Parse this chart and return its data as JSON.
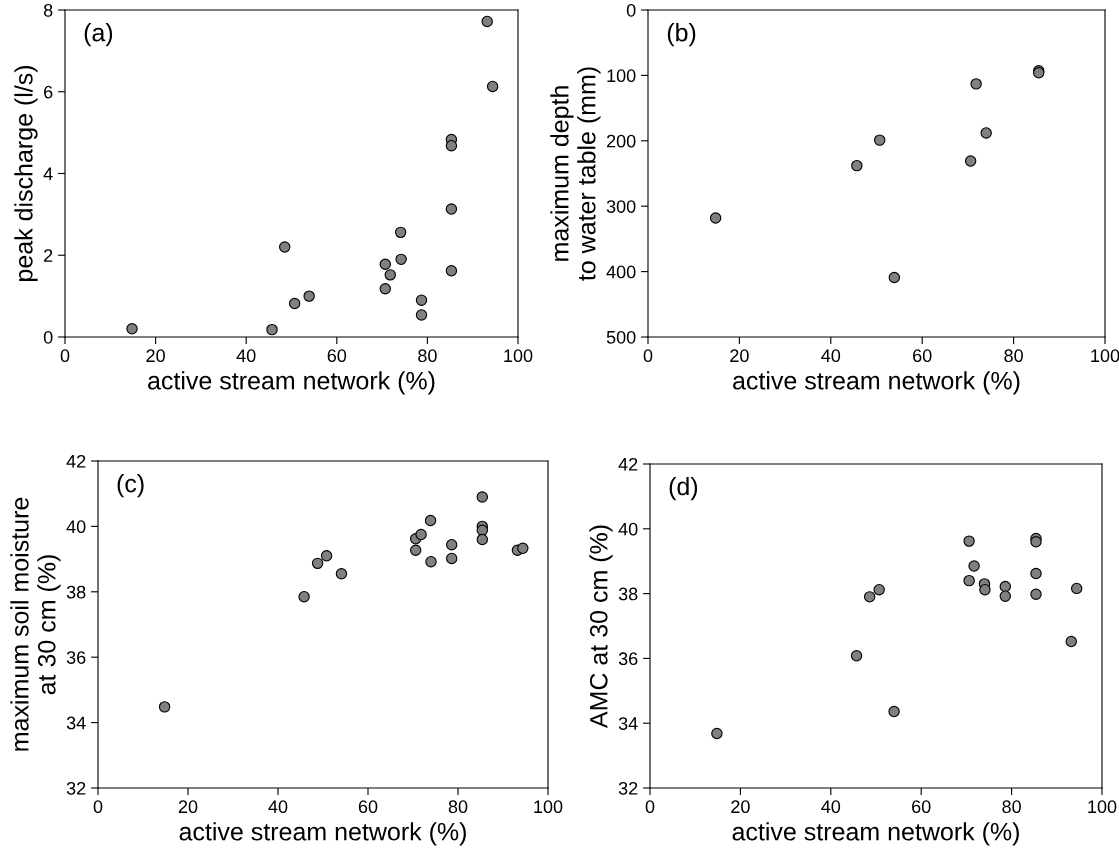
{
  "chart_data": [
    {
      "type": "scatter",
      "xlabel": "active stream network (%)",
      "ylabel": "peak discharge (l/s)",
      "annotations": [
        "(a)"
      ],
      "marker": "circle",
      "grid": false,
      "legend": false,
      "xlim": [
        0,
        100
      ],
      "xticks": [
        0,
        20,
        40,
        60,
        80,
        100
      ],
      "ylim": [
        0,
        8
      ],
      "yticks": [
        0,
        2,
        4,
        6,
        8
      ],
      "series": [
        {
          "color": "#808080",
          "x": [
            14.8,
            45.7,
            48.5,
            50.7,
            53.9,
            70.7,
            70.7,
            71.8,
            74.1,
            74.2,
            78.7,
            78.7,
            85.3,
            85.3,
            85.3,
            85.3,
            93.2,
            94.4
          ],
          "values": [
            0.2,
            0.18,
            2.2,
            0.82,
            1.0,
            1.78,
            1.18,
            1.52,
            2.56,
            1.9,
            0.9,
            0.54,
            4.83,
            4.68,
            3.13,
            1.62,
            7.72,
            6.13
          ]
        }
      ]
    },
    {
      "type": "scatter",
      "xlabel": "active stream network (%)",
      "ylabel": "maximum depth\nto water table (mm)",
      "annotations": [
        "(b)"
      ],
      "marker": "circle",
      "grid": false,
      "legend": false,
      "xlim": [
        0,
        100
      ],
      "xticks": [
        0,
        20,
        40,
        60,
        80,
        100
      ],
      "ylim": [
        500,
        0
      ],
      "yticks": [
        0,
        100,
        200,
        300,
        400,
        500
      ],
      "series": [
        {
          "color": "#808080",
          "x": [
            14.8,
            45.7,
            50.7,
            53.9,
            70.6,
            71.8,
            74.0,
            85.5,
            85.5
          ],
          "values": [
            318,
            238,
            199,
            409,
            231,
            113,
            188,
            93,
            96
          ]
        }
      ]
    },
    {
      "type": "scatter",
      "xlabel": "active stream network (%)",
      "ylabel": "maximum soil moisture\nat 30 cm (%)",
      "annotations": [
        "(c)"
      ],
      "marker": "circle",
      "grid": false,
      "legend": false,
      "xlim": [
        0,
        100
      ],
      "xticks": [
        0,
        20,
        40,
        60,
        80,
        100
      ],
      "ylim": [
        32,
        42
      ],
      "yticks": [
        32,
        34,
        36,
        38,
        40,
        42
      ],
      "series": [
        {
          "color": "#808080",
          "x": [
            14.8,
            45.8,
            48.8,
            50.8,
            54.1,
            70.6,
            70.6,
            71.8,
            73.9,
            74.0,
            78.6,
            78.6,
            85.4,
            85.4,
            85.4,
            85.4,
            93.2,
            94.4
          ],
          "values": [
            34.48,
            37.85,
            38.87,
            39.1,
            38.55,
            39.62,
            39.27,
            39.75,
            40.18,
            38.92,
            39.44,
            39.02,
            40.9,
            40.0,
            39.88,
            39.6,
            39.27,
            39.33
          ]
        }
      ]
    },
    {
      "type": "scatter",
      "xlabel": "active stream network (%)",
      "ylabel": "AMC at 30 cm (%)",
      "annotations": [
        "(d)"
      ],
      "marker": "circle",
      "grid": false,
      "legend": false,
      "xlim": [
        0,
        100
      ],
      "xticks": [
        0,
        20,
        40,
        60,
        80,
        100
      ],
      "ylim": [
        32,
        42
      ],
      "yticks": [
        32,
        34,
        36,
        38,
        40,
        42
      ],
      "series": [
        {
          "color": "#808080",
          "x": [
            14.8,
            45.7,
            48.6,
            50.7,
            54.0,
            70.6,
            70.6,
            71.7,
            74.0,
            74.1,
            78.6,
            78.6,
            85.4,
            85.4,
            85.4,
            85.4,
            93.2,
            94.4
          ],
          "values": [
            33.68,
            36.08,
            37.9,
            38.12,
            34.36,
            39.62,
            38.4,
            38.85,
            38.3,
            38.12,
            38.22,
            37.92,
            39.7,
            39.6,
            38.62,
            37.98,
            36.52,
            38.16
          ]
        }
      ]
    }
  ]
}
